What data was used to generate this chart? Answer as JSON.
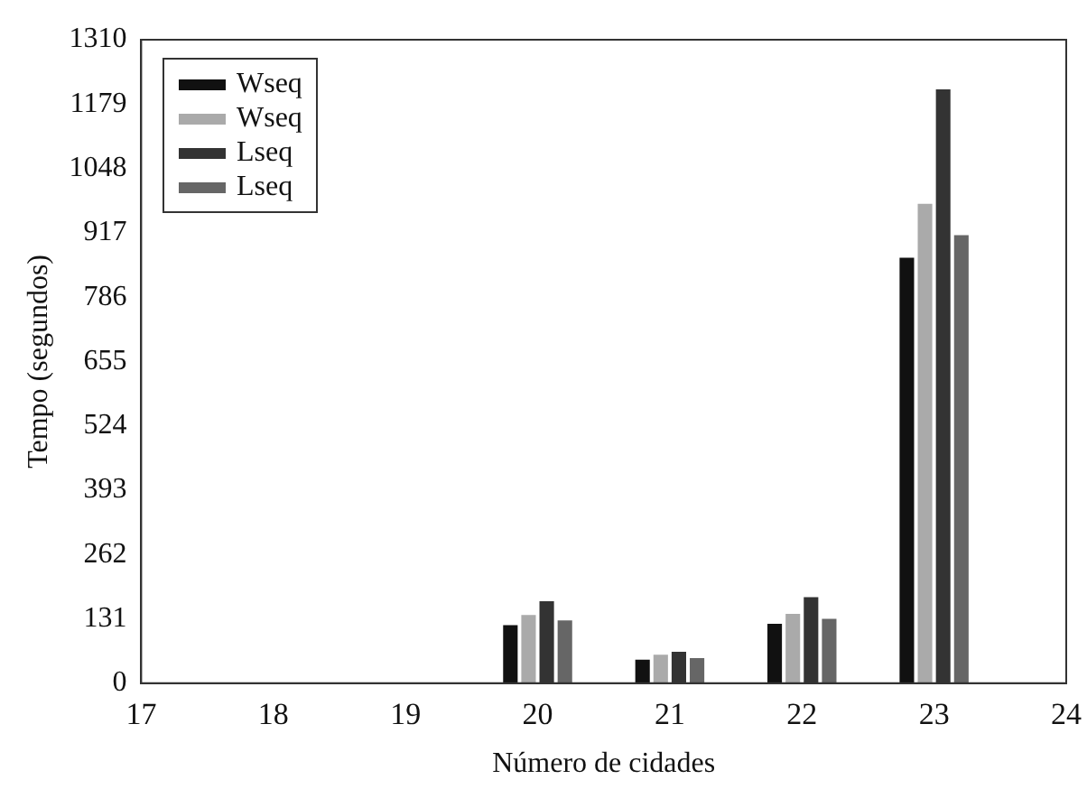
{
  "chart_data": {
    "type": "bar",
    "xlabel": "Número de cidades",
    "ylabel": "Tempo (segundos)",
    "x": [
      18,
      19,
      20,
      21,
      22,
      23
    ],
    "xlim": [
      17,
      24
    ],
    "xticks": [
      17,
      18,
      19,
      20,
      21,
      22,
      23,
      24
    ],
    "ylim": [
      0,
      1310
    ],
    "yticks": [
      0,
      131,
      262,
      393,
      524,
      655,
      786,
      917,
      1048,
      1179,
      1310
    ],
    "grid": false,
    "legend": "top left",
    "series": [
      {
        "name": "Wseq",
        "color": "#111111",
        "values": [
          0,
          0,
          118,
          48,
          121,
          866
        ]
      },
      {
        "name": "Wseq",
        "color": "#aaaaaa",
        "values": [
          0,
          0,
          139,
          58,
          141,
          976
        ]
      },
      {
        "name": "Lseq",
        "color": "#333333",
        "values": [
          0,
          0,
          167,
          64,
          175,
          1209
        ]
      },
      {
        "name": "Lseq",
        "color": "#666666",
        "values": [
          0,
          0,
          128,
          51,
          131,
          912
        ]
      }
    ]
  }
}
